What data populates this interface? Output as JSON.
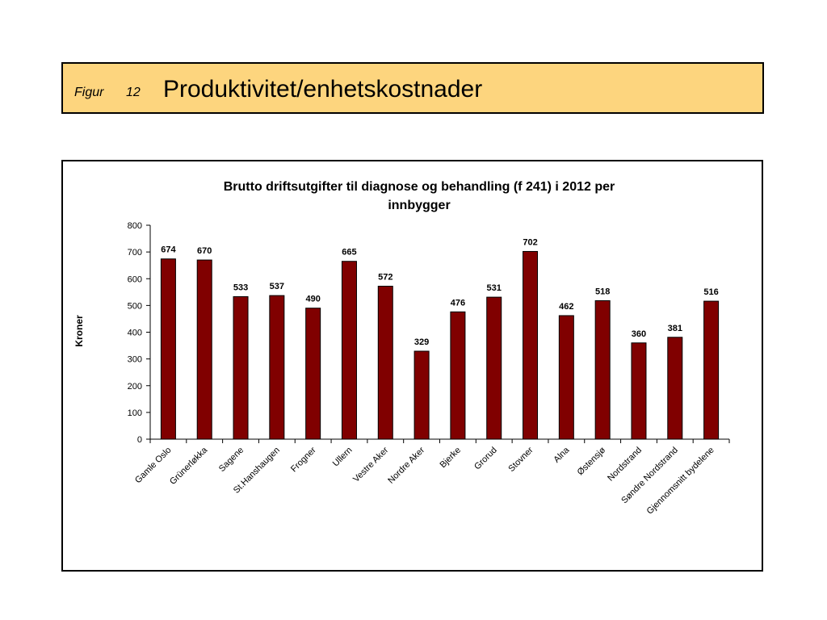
{
  "header": {
    "figure_label": "Figur",
    "figure_number": "12",
    "title": "Produktivitet/enhetskostnader"
  },
  "colors": {
    "header_background": "#fdd57e",
    "bar_fill": "#800000"
  },
  "chart_data": {
    "type": "bar",
    "title_lines": [
      "Brutto driftsutgifter til diagnose og behandling (f 241) i 2012 per",
      "innbygger"
    ],
    "xlabel": "",
    "ylabel": "Kroner",
    "ylim": [
      0,
      800
    ],
    "yticks": [
      "0",
      "100",
      "200",
      "300",
      "400",
      "500",
      "600",
      "700",
      "800"
    ],
    "grid": false,
    "legend": false,
    "categories": [
      "Gamle Oslo",
      "Grünerløkka",
      "Sagene",
      "St.Hanshaugen",
      "Frogner",
      "Ullern",
      "Vestre Aker",
      "Nordre Aker",
      "Bjerke",
      "Grorud",
      "Stovner",
      "Alna",
      "Østensjø",
      "Nordstrand",
      "Søndre Nordstrand",
      "Gjennomsnitt bydelene"
    ],
    "values": [
      674,
      670,
      533,
      537,
      490,
      665,
      572,
      329,
      476,
      531,
      702,
      462,
      518,
      360,
      381,
      516
    ],
    "data_labels": [
      "674",
      "670",
      "533",
      "537",
      "490",
      "665",
      "572",
      "329",
      "476",
      "531",
      "702",
      "462",
      "518",
      "360",
      "381",
      "516"
    ]
  }
}
